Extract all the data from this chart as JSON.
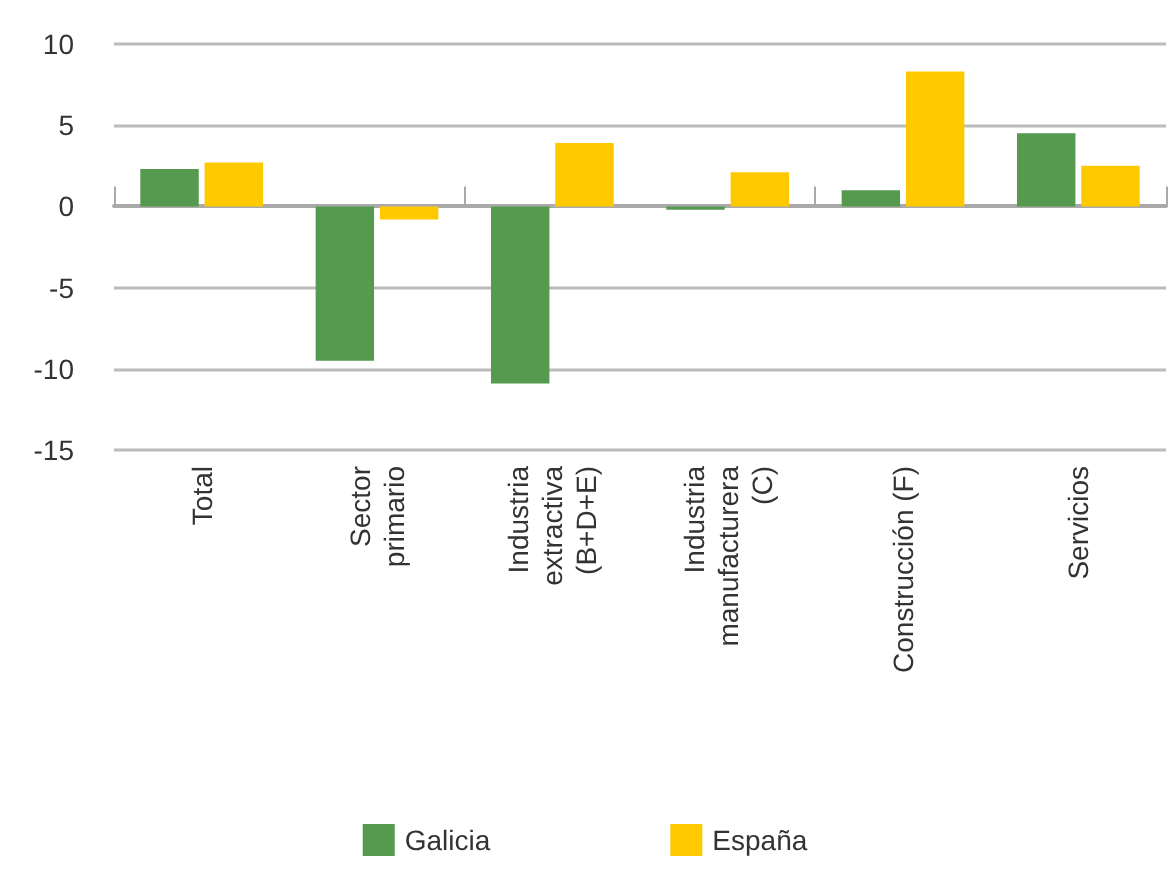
{
  "chart_data": {
    "type": "bar",
    "categories": [
      "Total",
      "Sector\nprimario",
      "Industria\nextractiva\n(B+D+E)",
      "Industria\nmanufacturera\n(C)",
      "Construcción (F)",
      "Servicios"
    ],
    "series": [
      {
        "name": "Galicia",
        "color": "#559a4f",
        "values": [
          2.3,
          -9.5,
          -10.9,
          -0.2,
          1.0,
          4.5
        ]
      },
      {
        "name": "España",
        "color": "#ffc900",
        "values": [
          2.7,
          -0.8,
          3.9,
          2.1,
          8.3,
          2.5
        ]
      }
    ],
    "ylim": [
      -15,
      10
    ],
    "yticks": [
      -15,
      -10,
      -5,
      0,
      5,
      10
    ],
    "grid": "y",
    "legend": "bottom"
  }
}
